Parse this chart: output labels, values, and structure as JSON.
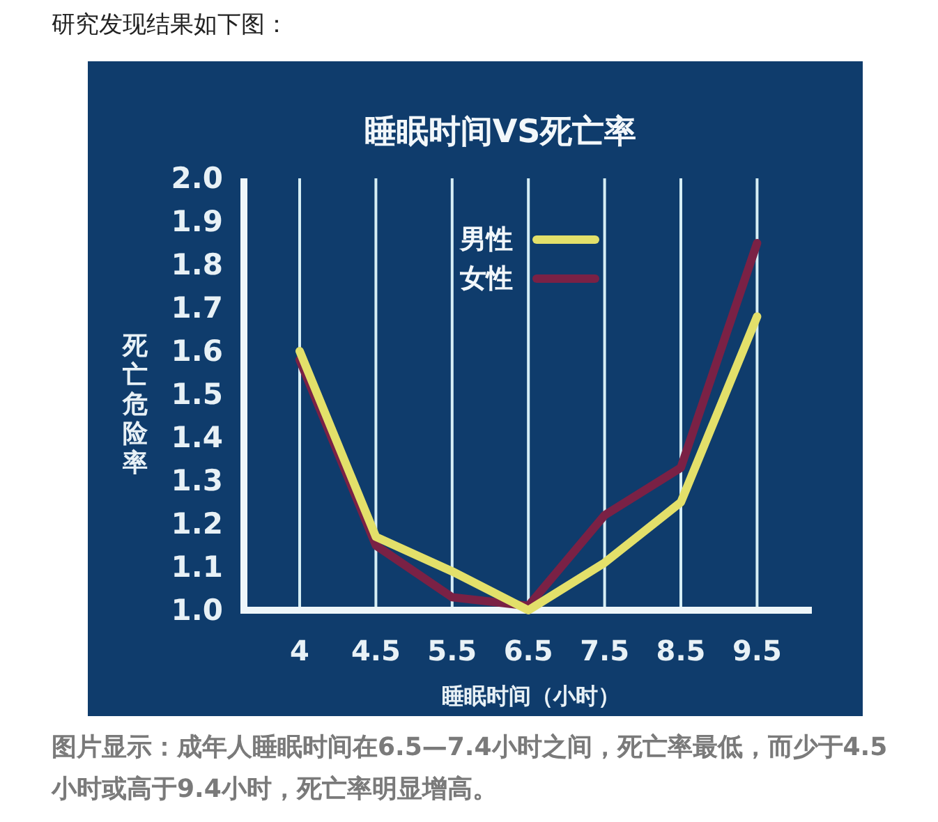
{
  "chart_data": {
    "type": "line",
    "title": "睡眠时间VS死亡率",
    "xlabel": "睡眠时间（小时）",
    "ylabel": "死亡危险率",
    "categories": [
      "4",
      "4.5",
      "5.5",
      "6.5",
      "7.5",
      "8.5",
      "9.5"
    ],
    "series": [
      {
        "name": "男性",
        "color": "#e3e06a",
        "values": [
          1.6,
          1.17,
          1.09,
          1.0,
          1.11,
          1.25,
          1.68
        ]
      },
      {
        "name": "女性",
        "color": "#7a2145",
        "values": [
          1.58,
          1.15,
          1.03,
          1.01,
          1.22,
          1.33,
          1.85
        ]
      }
    ],
    "ylim": [
      1.0,
      2.0
    ],
    "yticks": [
      {
        "value": 1.0,
        "label": "1.0"
      },
      1.1,
      1.2,
      1.3,
      1.4,
      1.5,
      1.6,
      1.7,
      1.8,
      1.9,
      {
        "value": 2.0,
        "label": "2.0"
      }
    ],
    "grid": "x",
    "legend": "top",
    "annotations": [
      "研究发现结果如下图：",
      "图片显示：成年人睡眠时间在6.5—7.4小时之间，死亡率最低，而少于4.5小时或高于9.4小时，死亡率明显增高。"
    ]
  }
}
